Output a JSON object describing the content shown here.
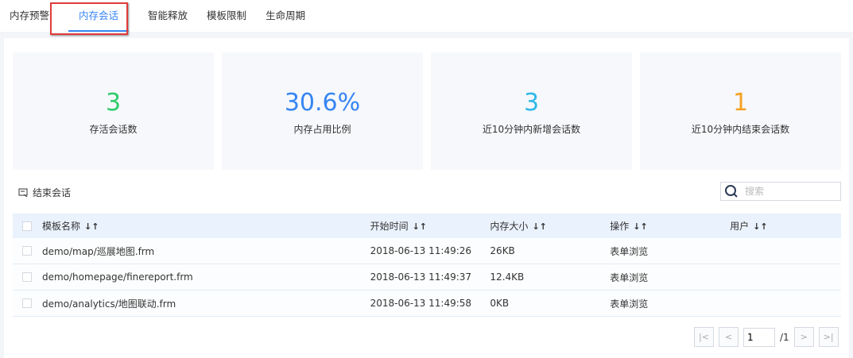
{
  "tabs": [
    "内存预警",
    "内存会话",
    "智能释放",
    "模板限制",
    "生命周期"
  ],
  "active_tab": 1,
  "stats": [
    {
      "value": "3",
      "label": "存活会话数",
      "color": "#2fcb6b"
    },
    {
      "value": "30.6%",
      "label": "内存占用比例",
      "color": "#3685f2"
    },
    {
      "value": "3",
      "label": "近10分钟内新增会话数",
      "color": "#2fb8e8"
    },
    {
      "value": "1",
      "label": "近10分钟内结束会话数",
      "color": "#f5a123"
    }
  ],
  "toolbar": {
    "end_session": "结束会话",
    "search_placeholder": "搜索"
  },
  "table": {
    "columns": [
      "模板名称",
      "开始时间",
      "内存大小",
      "操作",
      "用户"
    ],
    "sort_icon": "↓↑",
    "rows": [
      [
        "demo/map/巡展地图.frm",
        "2018-06-13 11:49:26",
        "26KB",
        "表单浏览",
        ""
      ],
      [
        "demo/homepage/finereport.frm",
        "2018-06-13 11:49:37",
        "12.4KB",
        "表单浏览",
        ""
      ],
      [
        "demo/analytics/地图联动.frm",
        "2018-06-13 11:49:58",
        "0KB",
        "表单浏览",
        ""
      ]
    ]
  },
  "pager": {
    "current": "1",
    "total": "/1"
  }
}
